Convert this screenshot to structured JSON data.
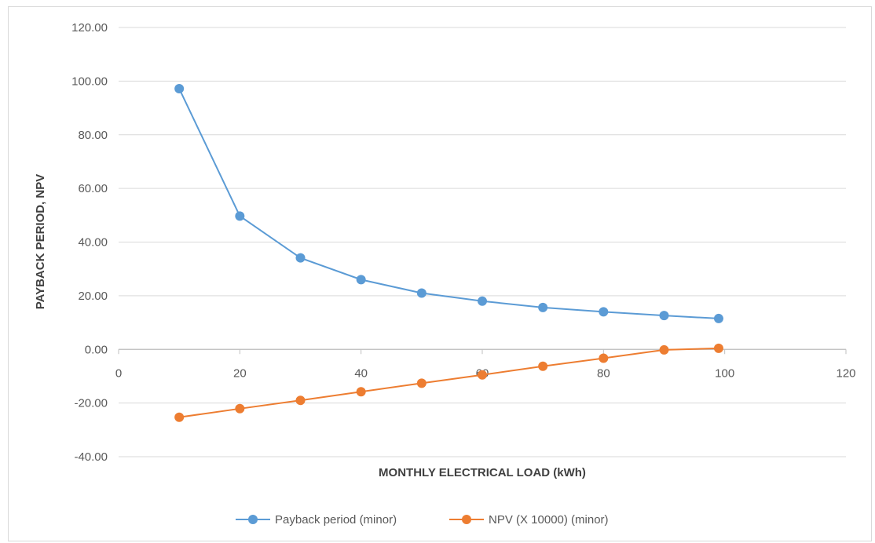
{
  "chart_data": {
    "type": "scatter",
    "xlabel": "MONTHLY ELECTRICAL LOAD (kWh)",
    "ylabel": "PAYBACK PERIOD, NPV",
    "xlim": [
      0,
      120
    ],
    "ylim": [
      -40,
      120
    ],
    "x_ticks": [
      "0",
      "20",
      "40",
      "60",
      "80",
      "100",
      "120"
    ],
    "y_ticks": [
      "-40.00",
      "-20.00",
      "0.00",
      "20.00",
      "40.00",
      "60.00",
      "80.00",
      "100.00",
      "120.00"
    ],
    "grid": "horizontal",
    "legend_position": "bottom",
    "series": [
      {
        "name": "Payback period (minor)",
        "color": "#5b9bd5",
        "x": [
          10,
          20,
          30,
          40,
          50,
          60,
          70,
          80,
          90,
          99
        ],
        "y": [
          97.2,
          49.7,
          34.1,
          26.0,
          21.0,
          18.0,
          15.6,
          14.0,
          12.6,
          11.5
        ]
      },
      {
        "name": "NPV (X 10000) (minor)",
        "color": "#ed7d31",
        "x": [
          10,
          20,
          30,
          40,
          50,
          60,
          70,
          80,
          90,
          99
        ],
        "y": [
          -25.3,
          -22.1,
          -19.0,
          -15.8,
          -12.6,
          -9.5,
          -6.3,
          -3.3,
          -0.2,
          0.4
        ]
      }
    ]
  }
}
